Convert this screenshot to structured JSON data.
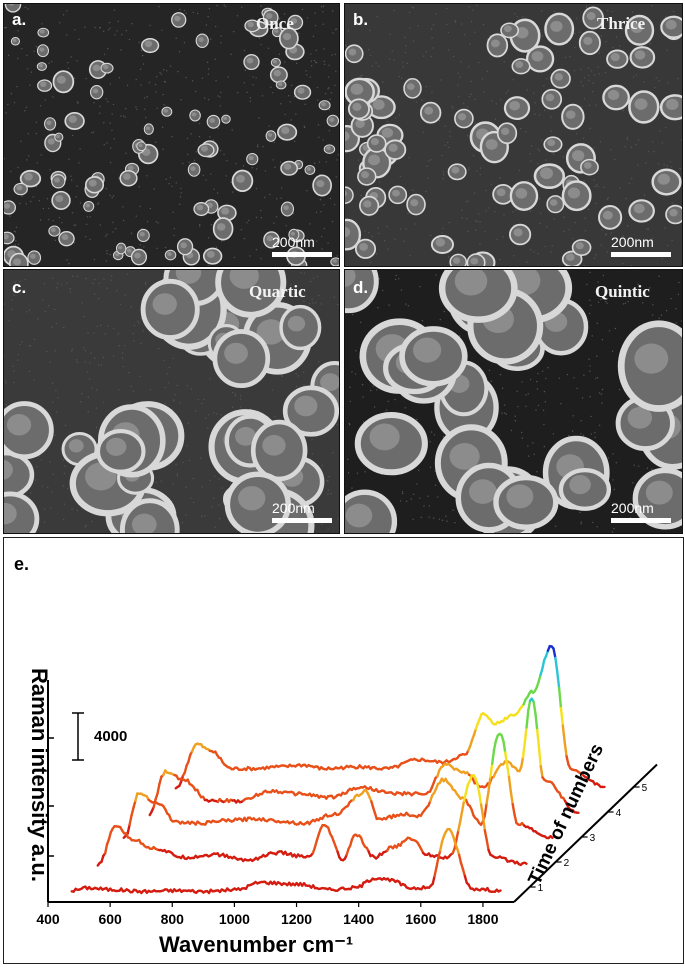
{
  "figure": {
    "panels": [
      {
        "id": "a",
        "label": "a.",
        "condition": "Once",
        "scale": "200nm"
      },
      {
        "id": "b",
        "label": "b.",
        "condition": "Thrice",
        "scale": "200nm"
      },
      {
        "id": "c",
        "label": "c.",
        "condition": "Quartic",
        "scale": "200nm"
      },
      {
        "id": "d",
        "label": "d.",
        "condition": "Quintic",
        "scale": "200nm"
      }
    ],
    "panel_e": {
      "label": "e.",
      "scale_value": "4000"
    }
  },
  "chart_data": {
    "type": "line",
    "xlabel": "Wavenumber cm⁻¹",
    "ylabel": "Raman intensity a.u.",
    "zlabel": "Time of numbers",
    "x_ticks": [
      400,
      600,
      800,
      1000,
      1200,
      1400,
      1600,
      1800
    ],
    "z_ticks": [
      "1",
      "2",
      "3",
      "4",
      "5"
    ],
    "xlim": [
      400,
      1900
    ],
    "scale_bar_intensity": 4000,
    "series": [
      {
        "values": [
          [
            470,
            600
          ],
          [
            520,
            900
          ],
          [
            600,
            700
          ],
          [
            700,
            500
          ],
          [
            800,
            600
          ],
          [
            900,
            500
          ],
          [
            1000,
            700
          ],
          [
            1080,
            1500
          ],
          [
            1200,
            1300
          ],
          [
            1300,
            700
          ],
          [
            1380,
            900
          ],
          [
            1450,
            2000
          ],
          [
            1500,
            1700
          ],
          [
            1560,
            900
          ],
          [
            1620,
            900
          ],
          [
            1680,
            7300
          ],
          [
            1760,
            800
          ],
          [
            1850,
            600
          ]
        ]
      },
      {
        "values": [
          [
            470,
            600
          ],
          [
            530,
            5000
          ],
          [
            580,
            3500
          ],
          [
            650,
            2500
          ],
          [
            750,
            1500
          ],
          [
            850,
            1800
          ],
          [
            950,
            1200
          ],
          [
            1050,
            2000
          ],
          [
            1150,
            1500
          ],
          [
            1200,
            5000
          ],
          [
            1260,
            1200
          ],
          [
            1300,
            4000
          ],
          [
            1360,
            1500
          ],
          [
            1420,
            2600
          ],
          [
            1480,
            3600
          ],
          [
            1530,
            1800
          ],
          [
            1600,
            1500
          ],
          [
            1680,
            10500
          ],
          [
            1740,
            1500
          ],
          [
            1850,
            800
          ]
        ]
      },
      {
        "values": [
          [
            470,
            800
          ],
          [
            520,
            5800
          ],
          [
            580,
            4700
          ],
          [
            640,
            2600
          ],
          [
            720,
            2500
          ],
          [
            800,
            2800
          ],
          [
            900,
            3000
          ],
          [
            950,
            2800
          ],
          [
            1050,
            2500
          ],
          [
            1150,
            3500
          ],
          [
            1250,
            6000
          ],
          [
            1290,
            3000
          ],
          [
            1380,
            3500
          ],
          [
            1420,
            3300
          ],
          [
            1500,
            7300
          ],
          [
            1560,
            5200
          ],
          [
            1620,
            2500
          ],
          [
            1680,
            12500
          ],
          [
            1740,
            2400
          ],
          [
            1850,
            900
          ]
        ]
      },
      {
        "values": [
          [
            470,
            800
          ],
          [
            520,
            5400
          ],
          [
            580,
            4500
          ],
          [
            660,
            2300
          ],
          [
            760,
            2200
          ],
          [
            860,
            3300
          ],
          [
            950,
            3000
          ],
          [
            1050,
            2600
          ],
          [
            1150,
            3700
          ],
          [
            1260,
            3000
          ],
          [
            1360,
            3000
          ],
          [
            1420,
            6200
          ],
          [
            1480,
            5400
          ],
          [
            1540,
            3700
          ],
          [
            1620,
            6500
          ],
          [
            1660,
            5600
          ],
          [
            1700,
            13500
          ],
          [
            1740,
            4500
          ],
          [
            1850,
            900
          ]
        ]
      },
      {
        "values": [
          [
            470,
            900
          ],
          [
            540,
            5700
          ],
          [
            580,
            5000
          ],
          [
            650,
            3000
          ],
          [
            720,
            3000
          ],
          [
            800,
            3200
          ],
          [
            880,
            3400
          ],
          [
            950,
            3000
          ],
          [
            1050,
            3200
          ],
          [
            1150,
            3000
          ],
          [
            1250,
            4000
          ],
          [
            1330,
            3700
          ],
          [
            1400,
            4500
          ],
          [
            1460,
            9000
          ],
          [
            1500,
            8000
          ],
          [
            1560,
            9000
          ],
          [
            1620,
            11500
          ],
          [
            1680,
            16500
          ],
          [
            1740,
            3000
          ],
          [
            1850,
            1000
          ]
        ]
      }
    ],
    "colormap": [
      "#d41c10",
      "#e8501a",
      "#f0a020",
      "#f5e020",
      "#6cd94a",
      "#2bc6d6",
      "#1a2fd0"
    ]
  }
}
